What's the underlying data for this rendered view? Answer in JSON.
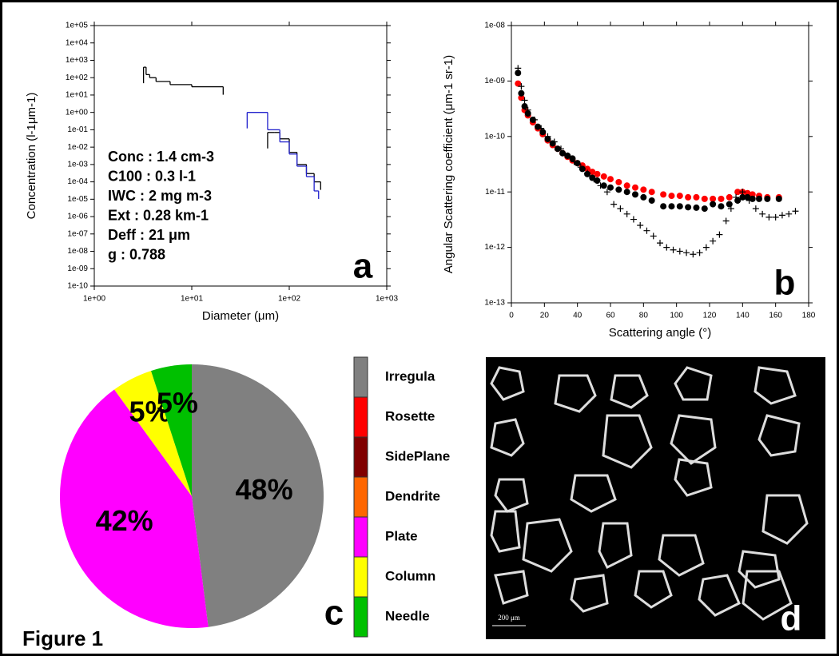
{
  "figure_label": "Figure 1",
  "chart_data": [
    {
      "type": "stairs",
      "panel_label": "a",
      "y_label": "Concentration (l-1μm-1)",
      "x_label": "Diameter (μm)",
      "log_x": true,
      "log_y": true,
      "xlim": [
        1,
        1000
      ],
      "xticks": [
        {
          "value": 1,
          "label": "1e+00"
        },
        {
          "value": 10,
          "label": "1e+01"
        },
        {
          "value": 100,
          "label": "1e+02"
        },
        {
          "value": 1000,
          "label": "1e+03"
        }
      ],
      "ylim": [
        1e-10,
        100000
      ],
      "yticks": [
        {
          "value": 100000,
          "label": "1e+05"
        },
        {
          "value": 10000,
          "label": "1e+04"
        },
        {
          "value": 1000,
          "label": "1e+03"
        },
        {
          "value": 100,
          "label": "1e+02"
        },
        {
          "value": 10,
          "label": "1e+01"
        },
        {
          "value": 1,
          "label": "1e+00"
        },
        {
          "value": 0.1,
          "label": "1e-01"
        },
        {
          "value": 0.01,
          "label": "1e-02"
        },
        {
          "value": 0.001,
          "label": "1e-03"
        },
        {
          "value": 0.0001,
          "label": "1e-04"
        },
        {
          "value": 1e-05,
          "label": "1e-05"
        },
        {
          "value": 1e-06,
          "label": "1e-06"
        },
        {
          "value": 1e-07,
          "label": "1e-07"
        },
        {
          "value": 1e-08,
          "label": "1e-08"
        },
        {
          "value": 1e-09,
          "label": "1e-09"
        },
        {
          "value": 1e-10,
          "label": "1e-10"
        }
      ],
      "series": [
        {
          "color": "#000000",
          "bins": [
            3.2,
            3.4,
            3.7,
            4.3,
            6,
            10,
            21
          ],
          "values": [
            400,
            150,
            100,
            60,
            40,
            30
          ]
        },
        {
          "color": "#000000",
          "bins": [
            60,
            70,
            80,
            100,
            120,
            150,
            180,
            210
          ],
          "values": [
            0.07,
            0.07,
            0.03,
            0.005,
            0.001,
            0.0003,
            0.0001
          ]
        },
        {
          "color": "#2222cc",
          "bins": [
            37,
            60,
            80,
            100,
            120,
            150,
            180,
            200
          ],
          "values": [
            1,
            0.1,
            0.02,
            0.004,
            0.0008,
            0.0002,
            3e-05
          ]
        }
      ],
      "annotations": [
        "Conc : 1.4 cm-3",
        "C100  : 0.3 l-1",
        "IWC   : 2 mg m-3",
        "Ext     : 0.28 km-1",
        "Deff   : 21 μm",
        "g        : 0.788"
      ]
    },
    {
      "type": "scatter",
      "panel_label": "b",
      "y_label": "Angular Scattering coefficient (μm-1 sr-1)",
      "x_label": "Scattering angle (°)",
      "log_y": true,
      "xlim": [
        0,
        180
      ],
      "xticks": [
        0,
        20,
        40,
        60,
        80,
        100,
        120,
        140,
        160,
        180
      ],
      "ylim": [
        1e-13,
        1e-08
      ],
      "yticks": [
        {
          "value": 1e-08,
          "label": "1e-08"
        },
        {
          "value": 1e-09,
          "label": "1e-09"
        },
        {
          "value": 1e-10,
          "label": "1e-10"
        },
        {
          "value": 1e-11,
          "label": "1e-11"
        },
        {
          "value": 1e-12,
          "label": "1e-12"
        },
        {
          "value": 1e-13,
          "label": "1e-13"
        }
      ],
      "series": [
        {
          "color": "#ff0000",
          "marker": "circle",
          "x": [
            4,
            6,
            8,
            10,
            13,
            16,
            19,
            22,
            25,
            28,
            31,
            34,
            37,
            40,
            43,
            46,
            49,
            52,
            56,
            60,
            65,
            70,
            75,
            80,
            85,
            92,
            97,
            102,
            107,
            112,
            117,
            122,
            127,
            132,
            137,
            140,
            143,
            146,
            150,
            155,
            162
          ],
          "values": [
            9e-10,
            5e-10,
            3e-10,
            2.4e-10,
            1.8e-10,
            1.4e-10,
            1.1e-10,
            8.5e-11,
            7e-11,
            6e-11,
            5e-11,
            4.3e-11,
            3.7e-11,
            3.3e-11,
            3e-11,
            2.6e-11,
            2.3e-11,
            2.1e-11,
            1.9e-11,
            1.7e-11,
            1.5e-11,
            1.3e-11,
            1.2e-11,
            1.1e-11,
            1e-11,
            9e-12,
            8.5e-12,
            8.5e-12,
            8e-12,
            8e-12,
            7.5e-12,
            7.5e-12,
            7.5e-12,
            8e-12,
            1e-11,
            1e-11,
            9.5e-12,
            9e-12,
            8.5e-12,
            8e-12,
            8e-12
          ]
        },
        {
          "color": "#000000",
          "marker": "circle",
          "x": [
            4,
            6,
            8,
            10,
            13,
            16,
            19,
            22,
            25,
            28,
            31,
            34,
            37,
            40,
            43,
            46,
            49,
            52,
            56,
            60,
            65,
            70,
            75,
            80,
            85,
            92,
            97,
            102,
            107,
            112,
            117,
            122,
            127,
            132,
            137,
            140,
            143,
            146,
            150,
            155,
            162
          ],
          "values": [
            1.4e-09,
            6e-10,
            3.5e-10,
            2.6e-10,
            2e-10,
            1.5e-10,
            1.2e-10,
            9e-11,
            7.5e-11,
            6e-11,
            5e-11,
            4.5e-11,
            4e-11,
            3.3e-11,
            2.6e-11,
            2.1e-11,
            1.8e-11,
            1.6e-11,
            1.3e-11,
            1.2e-11,
            1.1e-11,
            1e-11,
            9e-12,
            8e-12,
            7e-12,
            5.5e-12,
            5.5e-12,
            5.5e-12,
            5.3e-12,
            5.2e-12,
            5e-12,
            6e-12,
            5.5e-12,
            6e-12,
            7e-12,
            8e-12,
            8e-12,
            7.5e-12,
            7.5e-12,
            7.5e-12,
            7.5e-12
          ]
        },
        {
          "color": "#000000",
          "marker": "plus",
          "x": [
            4,
            6,
            8,
            10,
            14,
            18,
            22,
            26,
            30,
            34,
            38,
            42,
            46,
            50,
            54,
            58,
            62,
            66,
            70,
            74,
            78,
            82,
            86,
            90,
            94,
            98,
            102,
            106,
            110,
            114,
            118,
            122,
            126,
            130,
            133,
            136,
            140,
            144,
            148,
            152,
            156,
            160,
            164,
            168,
            172
          ],
          "values": [
            1.7e-09,
            8e-10,
            4.5e-10,
            3e-10,
            2e-10,
            1.4e-10,
            1e-10,
            8e-11,
            6e-11,
            4.5e-11,
            3.5e-11,
            2.8e-11,
            2.2e-11,
            1.7e-11,
            1.3e-11,
            1e-11,
            6e-12,
            5e-12,
            4e-12,
            3.2e-12,
            2.5e-12,
            2e-12,
            1.6e-12,
            1.2e-12,
            1e-12,
            9e-13,
            8.5e-13,
            8e-13,
            7.5e-13,
            8e-13,
            1e-12,
            1.3e-12,
            1.7e-12,
            3e-12,
            5e-12,
            8e-12,
            1e-11,
            7e-12,
            5e-12,
            4e-12,
            3.5e-12,
            3.5e-12,
            3.8e-12,
            4e-12,
            4.5e-12
          ]
        }
      ]
    },
    {
      "type": "pie",
      "panel_label": "c",
      "categories": [
        "Irregula",
        "Rosette",
        "SidePlane",
        "Dendrite",
        "Plate",
        "Column",
        "Needle"
      ],
      "values": [
        48,
        0,
        0,
        0,
        42,
        5,
        5
      ],
      "value_labels": [
        "48%",
        null,
        null,
        null,
        "42%",
        "5%",
        "5%"
      ],
      "colors": [
        "#808080",
        "#ff0000",
        "#800000",
        "#ff6600",
        "#ff00ff",
        "#ffff00",
        "#00c000"
      ]
    }
  ],
  "image_panel": {
    "scale_label": "200 μm",
    "panel_label": "d"
  }
}
